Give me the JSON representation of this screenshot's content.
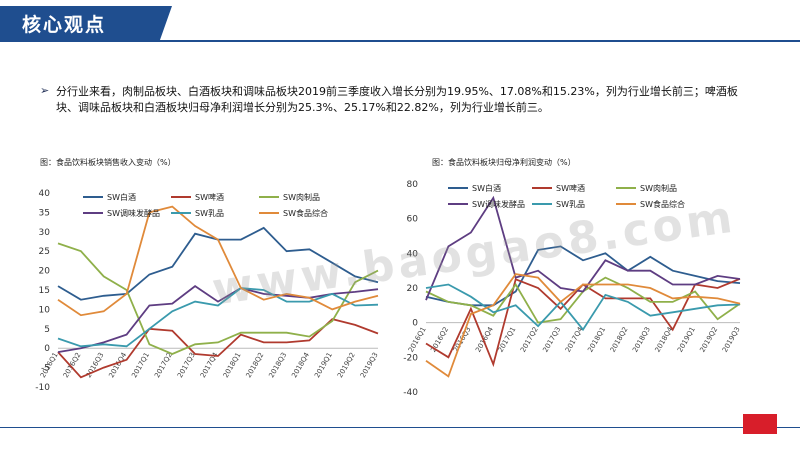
{
  "header": {
    "title": "核心观点"
  },
  "bullet": {
    "text": "分行业来看，肉制品板块、白酒板块和调味品板块2019前三季度收入增长分别为19.95%、17.08%和15.23%，列为行业增长前三；啤酒板块、调味品板块和白酒板块归母净利润增长分别为25.3%、25.17%和22.82%，列为行业增长前三。"
  },
  "watermark": "www.baogao8.com",
  "colors": {
    "brand": "#1f4e8f",
    "accent": "#d81e2a",
    "series": [
      "#2e5d8f",
      "#b03a2e",
      "#8fb04a",
      "#5e3d82",
      "#3a9aad",
      "#e08a3a"
    ]
  },
  "chart_data": [
    {
      "type": "line",
      "title": "图：食品饮料板块销售收入变动（%）",
      "categories": [
        "2016Q1",
        "2016Q2",
        "2016Q3",
        "2016Q4",
        "2017Q1",
        "2017Q2",
        "2017Q3",
        "2017Q4",
        "2018Q1",
        "2018Q2",
        "2018Q3",
        "2018Q4",
        "2019Q1",
        "2019Q2",
        "2019Q3"
      ],
      "ylim": [
        -10,
        40
      ],
      "yticks": [
        -10,
        -5,
        0,
        5,
        10,
        15,
        20,
        25,
        30,
        35,
        40
      ],
      "legend_position": "top",
      "series": [
        {
          "name": "SW白酒",
          "values": [
            16,
            12.5,
            13.5,
            14,
            19,
            21,
            29.5,
            28,
            28,
            31,
            25,
            25.5,
            22,
            18.5,
            17
          ]
        },
        {
          "name": "SW啤酒",
          "values": [
            -1,
            -7.5,
            -5,
            -3,
            5,
            4.5,
            -1.5,
            -2,
            3.5,
            1.5,
            1.5,
            2,
            7.5,
            6,
            3.8
          ]
        },
        {
          "name": "SW肉制品",
          "values": [
            27,
            25,
            18.5,
            15,
            1,
            -1.5,
            1,
            1.5,
            4,
            4,
            4,
            3,
            7,
            17,
            20
          ]
        },
        {
          "name": "SW调味发酵品",
          "values": [
            -1,
            0,
            1.5,
            3.5,
            11,
            11.5,
            16,
            12,
            15.5,
            14,
            13.5,
            13,
            14,
            14.5,
            15.2
          ]
        },
        {
          "name": "SW乳品",
          "values": [
            2.5,
            0.5,
            1,
            0.5,
            5,
            9.5,
            12,
            11,
            15.5,
            15,
            12,
            12,
            14,
            11,
            11.2
          ]
        },
        {
          "name": "SW食品综合",
          "values": [
            12.5,
            8.5,
            9.5,
            14,
            35,
            36.5,
            31.5,
            28,
            15.5,
            12.5,
            14,
            13,
            10,
            12,
            13.5
          ]
        }
      ]
    },
    {
      "type": "line",
      "title": "图：食品饮料板块归母净利润变动（%）",
      "categories": [
        "2016Q1",
        "2016Q2",
        "2016Q3",
        "2016Q4",
        "2017Q1",
        "2017Q2",
        "2017Q3",
        "2017Q4",
        "2018Q1",
        "2018Q2",
        "2018Q3",
        "2018Q4",
        "2019Q1",
        "2019Q2",
        "2019Q3"
      ],
      "ylim": [
        -40,
        80
      ],
      "yticks": [
        -40,
        -20,
        0,
        20,
        40,
        60,
        80
      ],
      "legend_position": "top",
      "series": [
        {
          "name": "SW白酒",
          "values": [
            15,
            12,
            10,
            10,
            18,
            42,
            44,
            36,
            40,
            30,
            38,
            30,
            27,
            24,
            22.8
          ]
        },
        {
          "name": "SW啤酒",
          "values": [
            -12,
            -20,
            8,
            -24,
            25,
            20,
            8,
            22,
            14,
            14,
            14,
            -4,
            22,
            20,
            25.3
          ]
        },
        {
          "name": "SW肉制品",
          "values": [
            18,
            12,
            10,
            4,
            22,
            0,
            2,
            18,
            26,
            20,
            12,
            12,
            18,
            2,
            11
          ]
        },
        {
          "name": "SW调味发酵品",
          "values": [
            13,
            44,
            52,
            72,
            26,
            30,
            20,
            18,
            36,
            30,
            30,
            22,
            22,
            27,
            25.2
          ]
        },
        {
          "name": "SW乳品",
          "values": [
            20,
            22,
            15,
            6,
            10,
            -2,
            12,
            -4,
            16,
            12,
            4,
            6,
            8,
            10,
            10.5
          ]
        },
        {
          "name": "SW食品综合",
          "values": [
            -22,
            -31,
            5,
            10,
            28,
            26,
            12,
            22,
            22,
            22,
            20,
            14,
            15,
            14,
            11
          ]
        }
      ]
    }
  ]
}
